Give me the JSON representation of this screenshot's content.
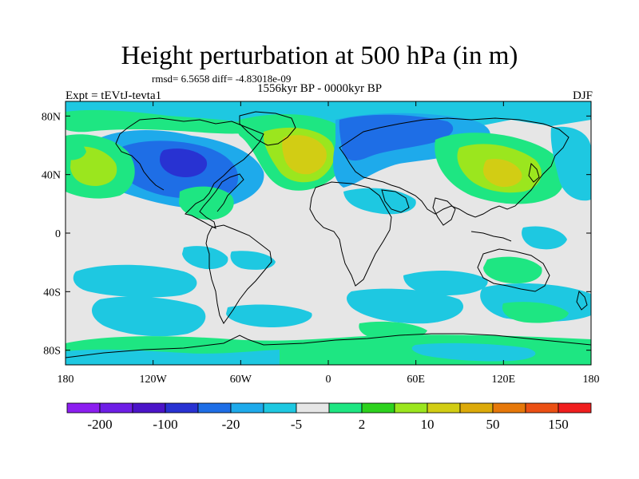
{
  "title": "Height perturbation at 500 hPa (in m)",
  "stats": "rmsd= 6.5658 diff= -4.83018e-09",
  "period": "1556kyr BP - 0000kyr BP",
  "experiment": "Expt = tEVtJ-tevta1",
  "season": "DJF",
  "map": {
    "lon_ticks": [
      "180",
      "120W",
      "60W",
      "0",
      "60E",
      "120E",
      "180"
    ],
    "lat_ticks": [
      "80N",
      "40N",
      "0",
      "40S",
      "80S"
    ]
  },
  "colorbar": {
    "colors": [
      "#8c1ef0",
      "#6e1ee6",
      "#4b14c8",
      "#2832d2",
      "#1e6ee6",
      "#1eaaeb",
      "#1ec8e1",
      "#e6e6e6",
      "#1ee682",
      "#2dd21e",
      "#9be61e",
      "#d2cd14",
      "#dcaa0a",
      "#e6780a",
      "#eb5014",
      "#f01e1e"
    ],
    "labels": [
      "-200",
      "-100",
      "-20",
      "-5",
      "2",
      "10",
      "50",
      "150"
    ]
  },
  "fill_colors": {
    "neutral": "#e6e6e6",
    "light_blue": "#1ec8e1",
    "mid_blue": "#1eaaeb",
    "blue": "#1e6ee6",
    "deep_blue": "#2832d2",
    "green": "#1ee682",
    "lime": "#9be61e",
    "yellow_olive": "#d2cd14",
    "ochre": "#dcaa0a"
  }
}
